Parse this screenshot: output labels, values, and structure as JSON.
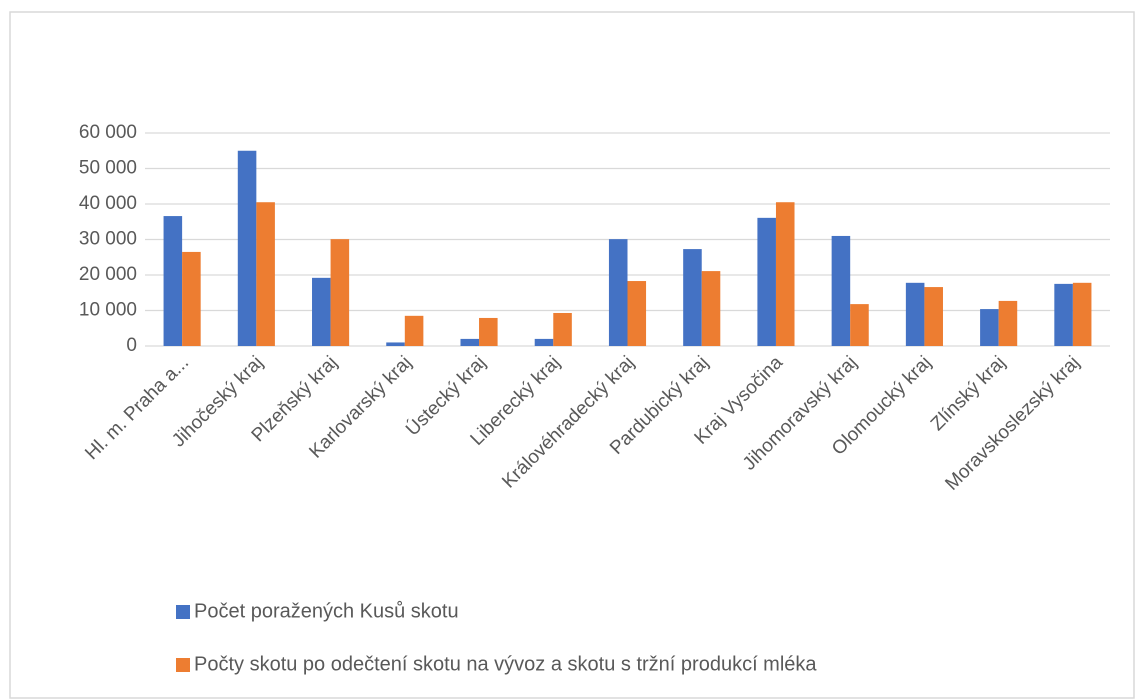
{
  "chart_data": {
    "type": "bar",
    "categories": [
      "Hl. m. Praha a...",
      "Jihočeský kraj",
      "Plzeňský kraj",
      "Karlovarský kraj",
      "Ústecký kraj",
      "Liberecký kraj",
      "Královéhradecký kraj",
      "Pardubický kraj",
      "Kraj Vysočina",
      "Jihomoravský kraj",
      "Olomoucký kraj",
      "Zlínský kraj",
      "Moravskoslezský kraj"
    ],
    "series": [
      {
        "name": "Počet poražených Kusů skotu",
        "color": "#4472c4",
        "values": [
          36600,
          55000,
          19200,
          1000,
          2000,
          2000,
          30100,
          27300,
          36100,
          31000,
          17800,
          10400,
          17500
        ]
      },
      {
        "name": "Počty skotu po odečtení skotu na vývoz a skotu s tržní produkcí mléka",
        "color": "#ed7d31",
        "values": [
          26500,
          40500,
          30100,
          8500,
          7900,
          9300,
          18300,
          21100,
          40500,
          11800,
          16600,
          12700,
          17800
        ]
      }
    ],
    "ylim": [
      0,
      60000
    ],
    "yticks": [
      0,
      {
        "value": 10000,
        "label": "10 000"
      },
      {
        "value": 20000,
        "label": "20 000"
      },
      {
        "value": 30000,
        "label": "30 000"
      },
      {
        "value": 40000,
        "label": "40 000"
      },
      {
        "value": 50000,
        "label": "50 000"
      },
      {
        "value": 60000,
        "label": "60 000"
      }
    ],
    "grid": true,
    "legend": "bottom"
  }
}
